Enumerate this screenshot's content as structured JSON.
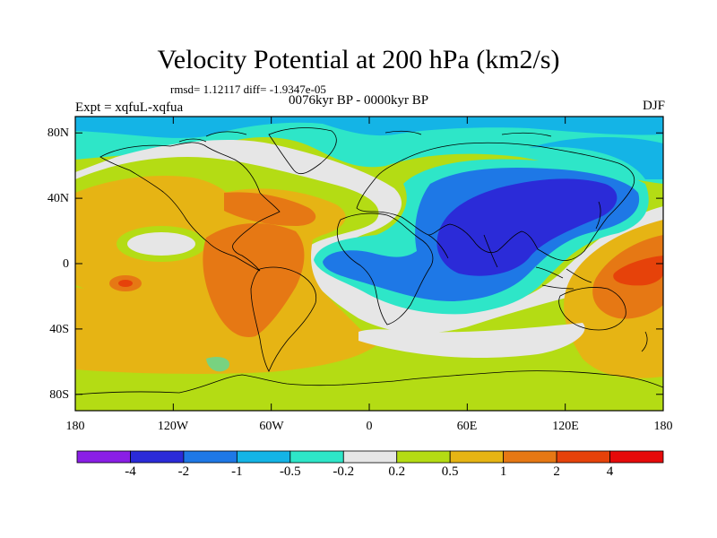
{
  "title": "Velocity Potential at 200 hPa (km2/s)",
  "stats_line": "rmsd= 1.12117 diff= -1.9347e-05",
  "expt_line": "Expt = xqfuL-xqfua",
  "period_line": "0076kyr BP - 0000kyr BP",
  "season": "DJF",
  "lat_labels": [
    "80N",
    "40N",
    "0",
    "40S",
    "80S"
  ],
  "lon_labels": [
    "180",
    "120W",
    "60W",
    "0",
    "60E",
    "120E",
    "180"
  ],
  "colorbar": {
    "colors": [
      "#8a1ee6",
      "#2b2bd8",
      "#1e78e6",
      "#14b4e6",
      "#2ee6c8",
      "#e6e6e6",
      "#b4dc14",
      "#e6b414",
      "#e67814",
      "#e6420a",
      "#e60a0a"
    ],
    "tick_labels": [
      "-4",
      "-2",
      "-1",
      "-0.5",
      "-0.2",
      "0.2",
      "0.5",
      "1",
      "2",
      "4"
    ]
  },
  "chart_data": {
    "type": "heatmap",
    "title": "Velocity Potential at 200 hPa (km2/s)",
    "variable": "Velocity Potential",
    "level": "200 hPa",
    "units": "km2/s",
    "experiment": "xqfuL-xqfua",
    "period": "0076kyr BP - 0000kyr BP",
    "season": "DJF",
    "rmsd": 1.12117,
    "diff": -1.9347e-05,
    "x_ticks": [
      "180",
      "120W",
      "60W",
      "0",
      "60E",
      "120E",
      "180"
    ],
    "y_ticks": [
      "80N",
      "40N",
      "0",
      "40S",
      "80S"
    ],
    "xlim": [
      -180,
      180
    ],
    "ylim": [
      -90,
      90
    ],
    "contour_levels": [
      -4,
      -2,
      -1,
      -0.5,
      -0.2,
      0.2,
      0.5,
      1,
      2,
      4
    ]
  }
}
